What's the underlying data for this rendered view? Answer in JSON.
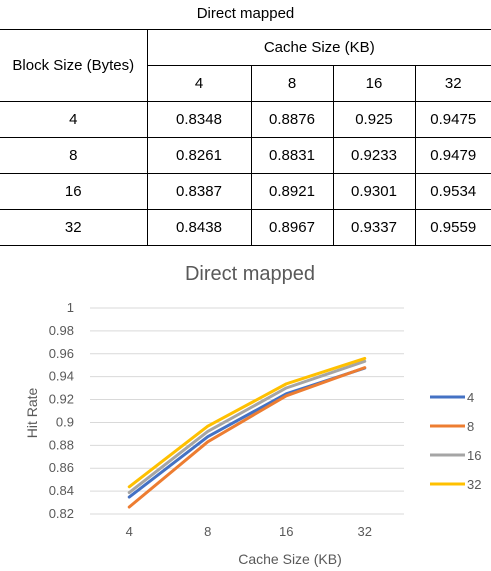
{
  "table": {
    "title": "Direct mapped",
    "row_header": "Block Size (Bytes)",
    "col_group_header": "Cache Size (KB)",
    "columns": [
      "4",
      "8",
      "16",
      "32"
    ],
    "rows": [
      {
        "label": "4",
        "values": [
          "0.8348",
          "0.8876",
          "0.925",
          "0.9475"
        ]
      },
      {
        "label": "8",
        "values": [
          "0.8261",
          "0.8831",
          "0.9233",
          "0.9479"
        ]
      },
      {
        "label": "16",
        "values": [
          "0.8387",
          "0.8921",
          "0.9301",
          "0.9534"
        ]
      },
      {
        "label": "32",
        "values": [
          "0.8438",
          "0.8967",
          "0.9337",
          "0.9559"
        ]
      }
    ]
  },
  "chart_data": {
    "type": "line",
    "title": "Direct mapped",
    "xlabel": "Cache Size (KB)",
    "ylabel": "Hit Rate",
    "categories": [
      "4",
      "8",
      "16",
      "32"
    ],
    "ylim": [
      0.82,
      1
    ],
    "yticks": [
      "0.82",
      "0.84",
      "0.86",
      "0.88",
      "0.9",
      "0.92",
      "0.94",
      "0.96",
      "0.98",
      "1"
    ],
    "grid": true,
    "legend_position": "right",
    "series": [
      {
        "name": "4",
        "color": "#4472C4",
        "values": [
          0.8348,
          0.8876,
          0.925,
          0.9475
        ]
      },
      {
        "name": "8",
        "color": "#ED7D31",
        "values": [
          0.8261,
          0.8831,
          0.9233,
          0.9479
        ]
      },
      {
        "name": "16",
        "color": "#A5A5A5",
        "values": [
          0.8387,
          0.8921,
          0.9301,
          0.9534
        ]
      },
      {
        "name": "32",
        "color": "#FFC000",
        "values": [
          0.8438,
          0.8967,
          0.9337,
          0.9559
        ]
      }
    ]
  }
}
